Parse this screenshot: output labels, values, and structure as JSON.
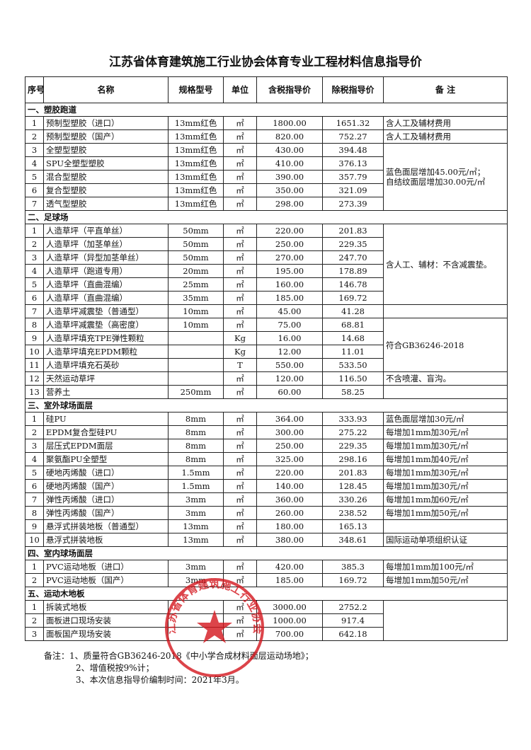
{
  "title": "江苏省体育建筑施工行业协会体育专业工程材料信息指导价",
  "headers": [
    "序号",
    "名称",
    "规格型号",
    "单位",
    "含税指导价",
    "除税指导价",
    "备 注"
  ],
  "sections": [
    {
      "title": "一、塑胶跑道",
      "rows": [
        [
          "1",
          "预制型塑胶（进口）",
          "13mm红色",
          "㎡",
          "1800.00",
          "1651.32",
          "含人工及辅材费用"
        ],
        [
          "2",
          "预制型塑胶（国产）",
          "13mm红色",
          "㎡",
          "820.00",
          "752.27",
          "含人工及辅材费用"
        ],
        [
          "3",
          "全塑型塑胶",
          "13mm红色",
          "㎡",
          "430.00",
          "394.48",
          [
            "蓝色面层增加45.00元/㎡；",
            "自结纹面层增加30.00元/㎡"
          ]
        ],
        [
          "4",
          "SPU全塑型塑胶",
          "13mm红色",
          "㎡",
          "410.00",
          "376.13"
        ],
        [
          "5",
          "混合型塑胶",
          "13mm红色",
          "㎡",
          "390.00",
          "357.79"
        ],
        [
          "6",
          "复合型塑胶",
          "13mm红色",
          "㎡",
          "350.00",
          "321.09"
        ],
        [
          "7",
          "透气型塑胶",
          "13mm红色",
          "㎡",
          "298.00",
          "273.39"
        ]
      ]
    },
    {
      "title": "二、足球场",
      "rows": [
        [
          "1",
          "人造草坪（平直单丝）",
          "50mm",
          "㎡",
          "220.00",
          "201.83",
          "含人工、辅材：不含减震垫。"
        ],
        [
          "2",
          "人造草坪（加茎单丝）",
          "50mm",
          "㎡",
          "250.00",
          "229.35"
        ],
        [
          "3",
          "人造草坪（异型加茎单丝）",
          "50mm",
          "㎡",
          "270.00",
          "247.70"
        ],
        [
          "4",
          "人造草坪（跑道专用）",
          "20mm",
          "㎡",
          "195.00",
          "178.89"
        ],
        [
          "5",
          "人造草坪（直曲混编）",
          "25mm",
          "㎡",
          "160.00",
          "146.78"
        ],
        [
          "6",
          "人造草坪（直曲混编）",
          "35mm",
          "㎡",
          "185.00",
          "169.72"
        ],
        [
          "7",
          "人造草坪减震垫（普通型）",
          "10mm",
          "㎡",
          "45.00",
          "41.28"
        ],
        [
          "8",
          "人造草坪减震垫（高密度）",
          "10mm",
          "㎡",
          "75.00",
          "68.81",
          "符合GB36246-2018"
        ],
        [
          "9",
          "人造草坪填充TPE弹性颗粒",
          null,
          "Kg",
          "16.00",
          "14.68"
        ],
        [
          "10",
          "人造草坪填充EPDM颗粒",
          null,
          "Kg",
          "12.00",
          "11.01"
        ],
        [
          "11",
          "人造草坪填充石英砂",
          null,
          "T",
          "550.00",
          "533.50"
        ],
        [
          "12",
          "天然运动草坪",
          null,
          "㎡",
          "120.00",
          "116.50",
          "不含喷灌、盲沟。"
        ],
        [
          "13",
          "营养土",
          "250mm",
          "㎡",
          "60.00",
          "58.25"
        ]
      ]
    },
    {
      "title": "三、室外球场面层",
      "rows": [
        [
          "1",
          "硅PU",
          "8mm",
          "㎡",
          "364.00",
          "333.93",
          "蓝色面层增加30元/㎡"
        ],
        [
          "2",
          "EPDM复合型硅PU",
          "8mm",
          "㎡",
          "300.00",
          "275.22",
          "每增加1mm加30元/㎡"
        ],
        [
          "3",
          "层压式EPDM面层",
          "8mm",
          "㎡",
          "250.00",
          "229.35",
          "每增加1mm加30元/㎡"
        ],
        [
          "4",
          "聚氨酯PU全塑型",
          "8mm",
          "㎡",
          "325.00",
          "298.16",
          "每增加1mm加40元/㎡"
        ],
        [
          "5",
          "硬地丙烯酸（进口）",
          "1.5mm",
          "㎡",
          "220.00",
          "201.83",
          "每增加1mm加30元/㎡"
        ],
        [
          "6",
          "硬地丙烯酸（国产）",
          "1.5mm",
          "㎡",
          "140.00",
          "128.45",
          "每增加1mm加30元/㎡"
        ],
        [
          "7",
          "弹性丙烯酸（进口）",
          "3mm",
          "㎡",
          "360.00",
          "330.26",
          "每增加1mm加60元/㎡"
        ],
        [
          "8",
          "弹性丙烯酸（国产）",
          "3mm",
          "㎡",
          "260.00",
          "238.52",
          "每增加1mm加50元/㎡"
        ],
        [
          "9",
          "悬浮式拼装地板（普通型）",
          "13mm",
          "㎡",
          "180.00",
          "165.13"
        ],
        [
          "10",
          "悬浮式拼装地板",
          "13mm",
          "㎡",
          "380.00",
          "348.61",
          "国际运动单项组织认证"
        ]
      ]
    },
    {
      "title": "四、室内球场面层",
      "rows": [
        [
          "1",
          "PVC运动地板（进口）",
          "3mm",
          "㎡",
          "420.00",
          "385.3",
          "每增加1mm加100元/㎡"
        ],
        [
          "2",
          "PVC运动地板（国产）",
          "3mm",
          "㎡",
          "185.00",
          "169.72",
          "每增加1mm加50元/㎡"
        ]
      ]
    },
    {
      "title": "五、运动木地板",
      "rows": [
        [
          "1",
          "拆装式地板",
          null,
          "㎡",
          "3000.00",
          "2752.2"
        ],
        [
          "2",
          "面板进口现场安装",
          null,
          "㎡",
          "1000.00",
          "917.4"
        ],
        [
          "3",
          "面板国产现场安装",
          null,
          "㎡",
          "700.00",
          "642.18"
        ]
      ]
    }
  ],
  "notes": [
    "备注：1、质量符合GB36246-2018《中小学合成材料面层运动场地》；",
    "2、增值税按9%计；",
    "3、本次信息指导价编制时间：2021年3月。"
  ],
  "stamp": "江苏省体育建筑施工行业协会"
}
